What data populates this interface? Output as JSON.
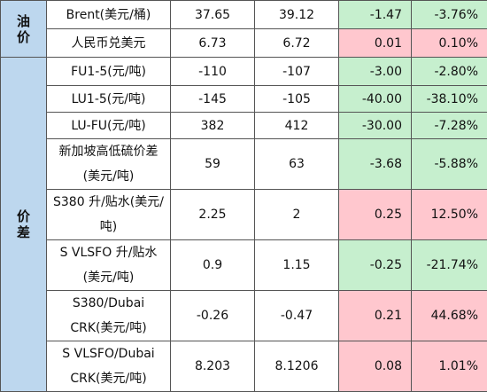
{
  "categories": {
    "oil": "油价",
    "spread": "价差"
  },
  "rows": [
    {
      "label": "Brent(美元/桶)",
      "v1": "37.65",
      "v2": "39.12",
      "chg": "-1.47",
      "pct": "-3.76%",
      "color": "green"
    },
    {
      "label": "人民币兑美元",
      "v1": "6.73",
      "v2": "6.72",
      "chg": "0.01",
      "pct": "0.10%",
      "color": "red"
    },
    {
      "label": "FU1-5(元/吨)",
      "v1": "-110",
      "v2": "-107",
      "chg": "-3.00",
      "pct": "-2.80%",
      "color": "green"
    },
    {
      "label": "LU1-5(元/吨)",
      "v1": "-145",
      "v2": "-105",
      "chg": "-40.00",
      "pct": "-38.10%",
      "color": "green"
    },
    {
      "label": "LU-FU(元/吨)",
      "v1": "382",
      "v2": "412",
      "chg": "-30.00",
      "pct": "-7.28%",
      "color": "green"
    },
    {
      "label": "新加坡高低硫价差(美元/吨)",
      "v1": "59",
      "v2": "63",
      "chg": "-3.68",
      "pct": "-5.88%",
      "color": "green"
    },
    {
      "label": "S380 升/贴水(美元/吨)",
      "v1": "2.25",
      "v2": "2",
      "chg": "0.25",
      "pct": "12.50%",
      "color": "red"
    },
    {
      "label": "S VLSFO 升/贴水(美元/吨)",
      "v1": "0.9",
      "v2": "1.15",
      "chg": "-0.25",
      "pct": "-21.74%",
      "color": "green"
    },
    {
      "label": "S380/Dubai CRK(美元/吨)",
      "v1": "-0.26",
      "v2": "-0.47",
      "chg": "0.21",
      "pct": "44.68%",
      "color": "red"
    },
    {
      "label": "S VLSFO/Dubai CRK(美元/吨)",
      "v1": "8.203",
      "v2": "8.1206",
      "chg": "0.08",
      "pct": "1.01%",
      "color": "red"
    }
  ],
  "colors": {
    "category_bg": "#bdd7ee",
    "decrease_bg": "#c6efce",
    "increase_bg": "#ffc7ce"
  }
}
